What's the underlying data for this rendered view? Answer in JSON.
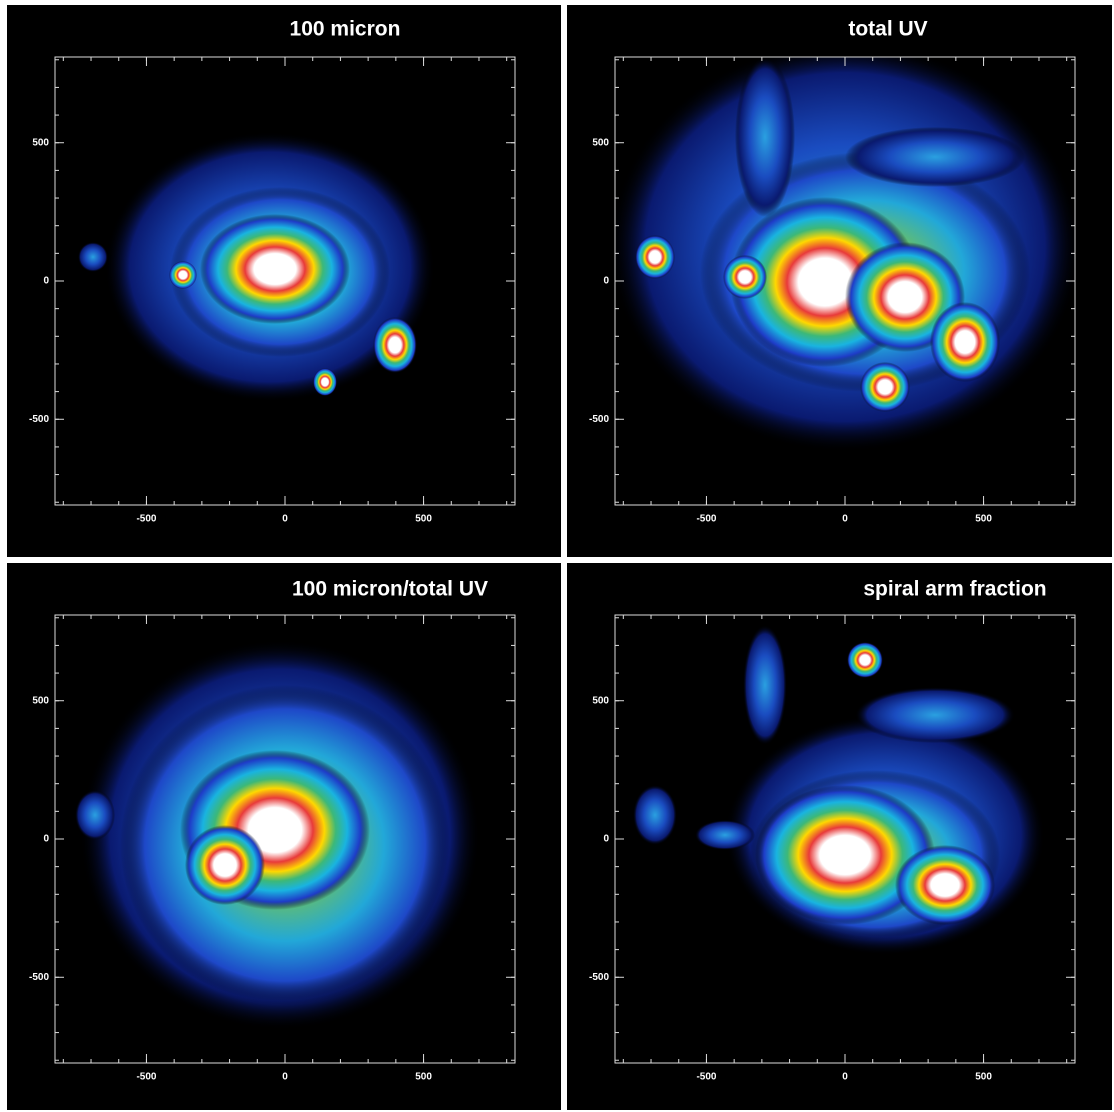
{
  "chart_data": [
    {
      "type": "image",
      "title": "100 micron",
      "xlim": [
        -830,
        830
      ],
      "ylim": [
        -810,
        810
      ],
      "xticks": [
        -500,
        0,
        500
      ],
      "yticks": [
        -500,
        0,
        500
      ]
    },
    {
      "type": "image",
      "title": "total UV",
      "xlim": [
        -830,
        830
      ],
      "ylim": [
        -810,
        810
      ],
      "xticks": [
        -500,
        0,
        500
      ],
      "yticks": [
        -500,
        0,
        500
      ]
    },
    {
      "type": "image",
      "title": "100 micron/total UV",
      "xlim": [
        -830,
        830
      ],
      "ylim": [
        -810,
        810
      ],
      "xticks": [
        -500,
        0,
        500
      ],
      "yticks": [
        -500,
        0,
        500
      ]
    },
    {
      "type": "image",
      "title": "spiral arm fraction",
      "xlim": [
        -830,
        830
      ],
      "ylim": [
        -810,
        810
      ],
      "xticks": [
        -500,
        0,
        500
      ],
      "yticks": [
        -500,
        0,
        500
      ]
    }
  ]
}
